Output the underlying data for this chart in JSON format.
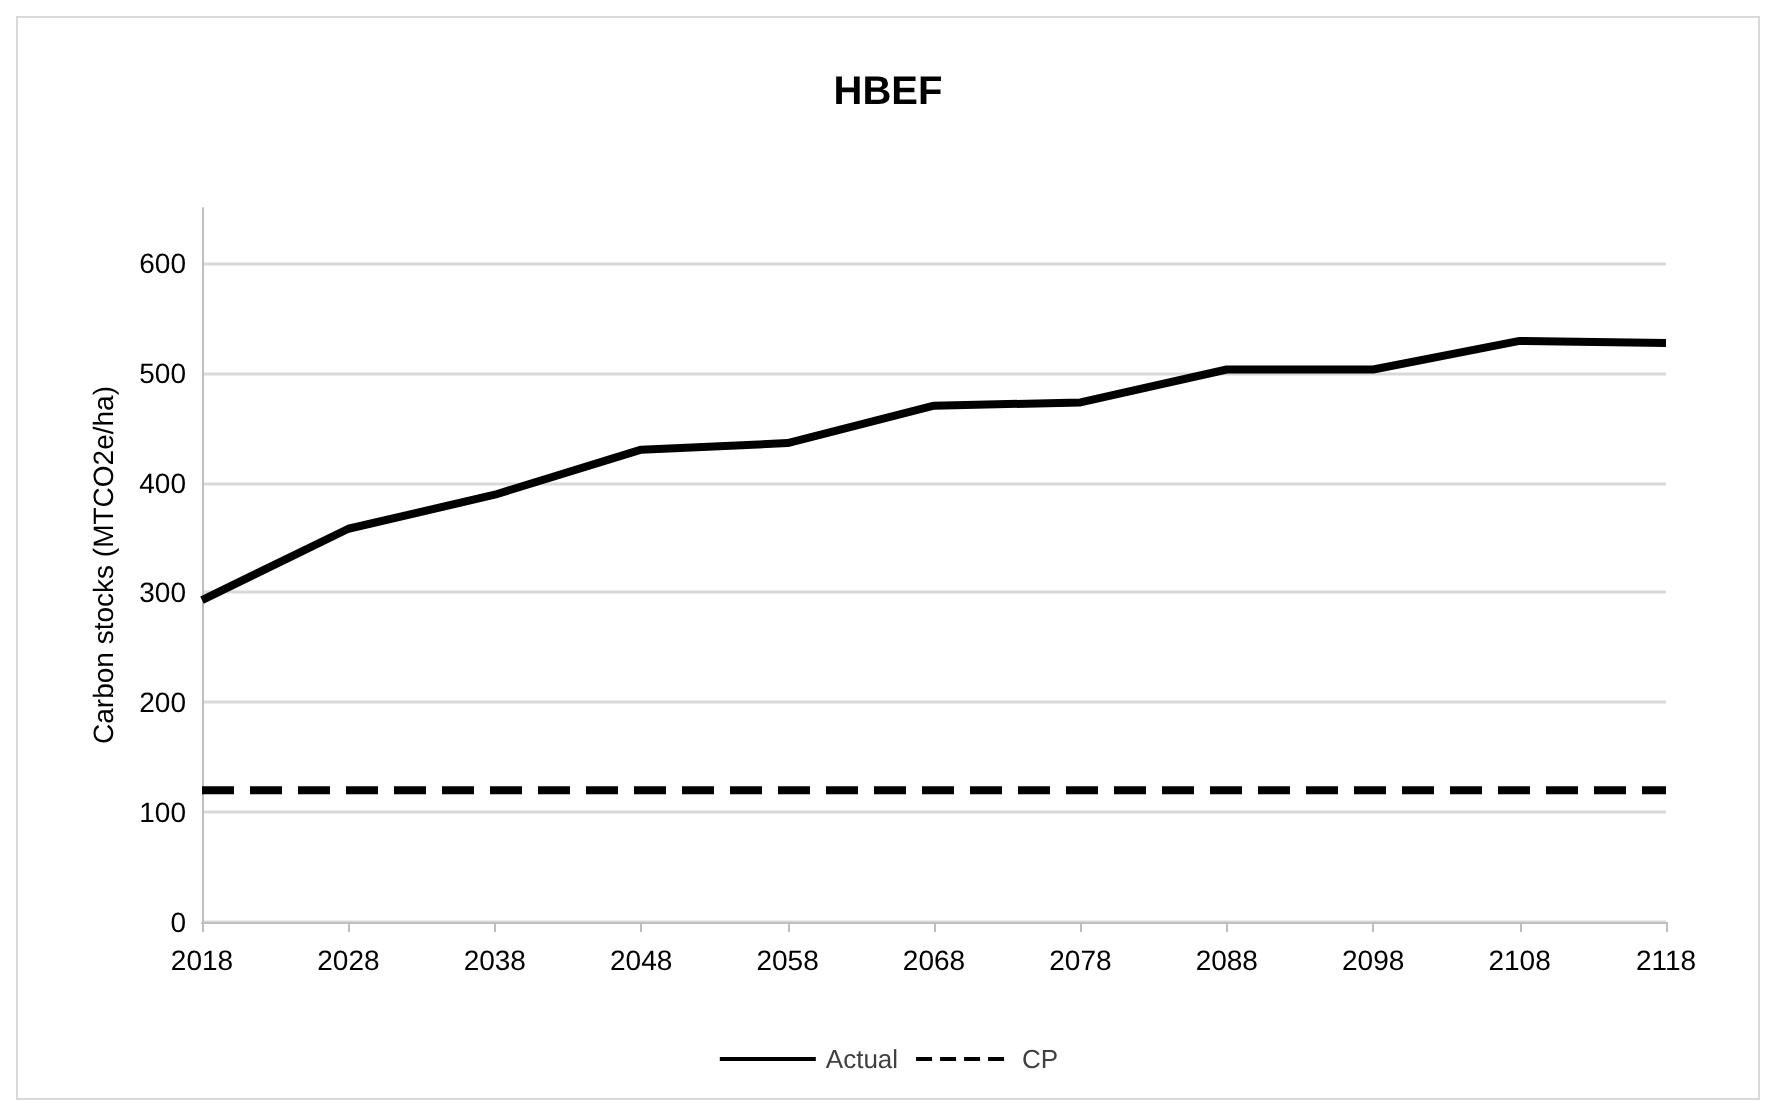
{
  "chart_data": {
    "type": "line",
    "title": "HBEF",
    "ylabel": "Carbon stocks (MTCO2e/ha)",
    "x": [
      2018,
      2028,
      2038,
      2048,
      2058,
      2068,
      2078,
      2088,
      2098,
      2108,
      2118
    ],
    "xlim": [
      2018,
      2118
    ],
    "xticks": [
      2018,
      2028,
      2038,
      2048,
      2058,
      2068,
      2078,
      2088,
      2098,
      2108,
      2118
    ],
    "ylim": [
      0,
      650
    ],
    "yticks": [
      0,
      100,
      200,
      300,
      400,
      500,
      600
    ],
    "series": [
      {
        "name": "Actual",
        "color": "#000000",
        "line_style": "solid",
        "values": [
          293,
          358,
          389,
          430,
          436,
          470,
          473,
          503,
          503,
          529,
          527
        ]
      },
      {
        "name": "CP",
        "color": "#000000",
        "line_style": "dashed",
        "values": [
          120,
          120,
          120,
          120,
          120,
          120,
          120,
          120,
          120,
          120,
          120
        ]
      }
    ],
    "grid": "y",
    "legend": "bottom",
    "marker": "none"
  }
}
